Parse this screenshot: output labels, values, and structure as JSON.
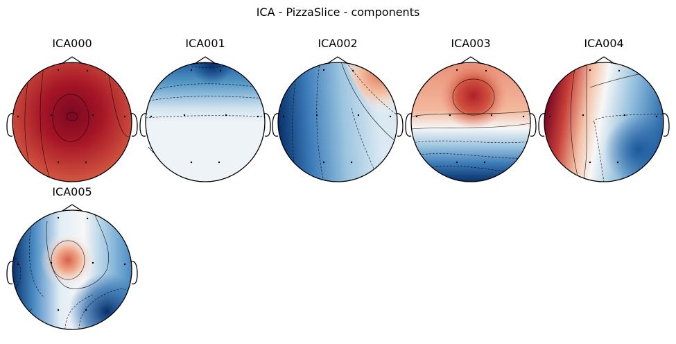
{
  "figure": {
    "title": "ICA - PizzaSlice - components"
  },
  "chart_data": {
    "type": "heatmap",
    "title": "ICA - PizzaSlice - components",
    "colormap": "RdBu_r",
    "colors": {
      "positive": "#67001f",
      "neutral": "#f7f7f7",
      "negative": "#053061"
    },
    "components": [
      {
        "name": "ICA000",
        "pattern": "strong positive over the whole scalp, peak at center-front"
      },
      {
        "name": "ICA001",
        "pattern": "negative frontal band, near-zero elsewhere"
      },
      {
        "name": "ICA002",
        "pattern": "negative left/posterior, positive right-frontal wedge"
      },
      {
        "name": "ICA003",
        "pattern": "positive frontal-central peak, negative posterior"
      },
      {
        "name": "ICA004",
        "pattern": "positive left-temporal, negative right-posterior"
      },
      {
        "name": "ICA005",
        "pattern": "positive central focus, negative left and right-posterior"
      }
    ]
  }
}
